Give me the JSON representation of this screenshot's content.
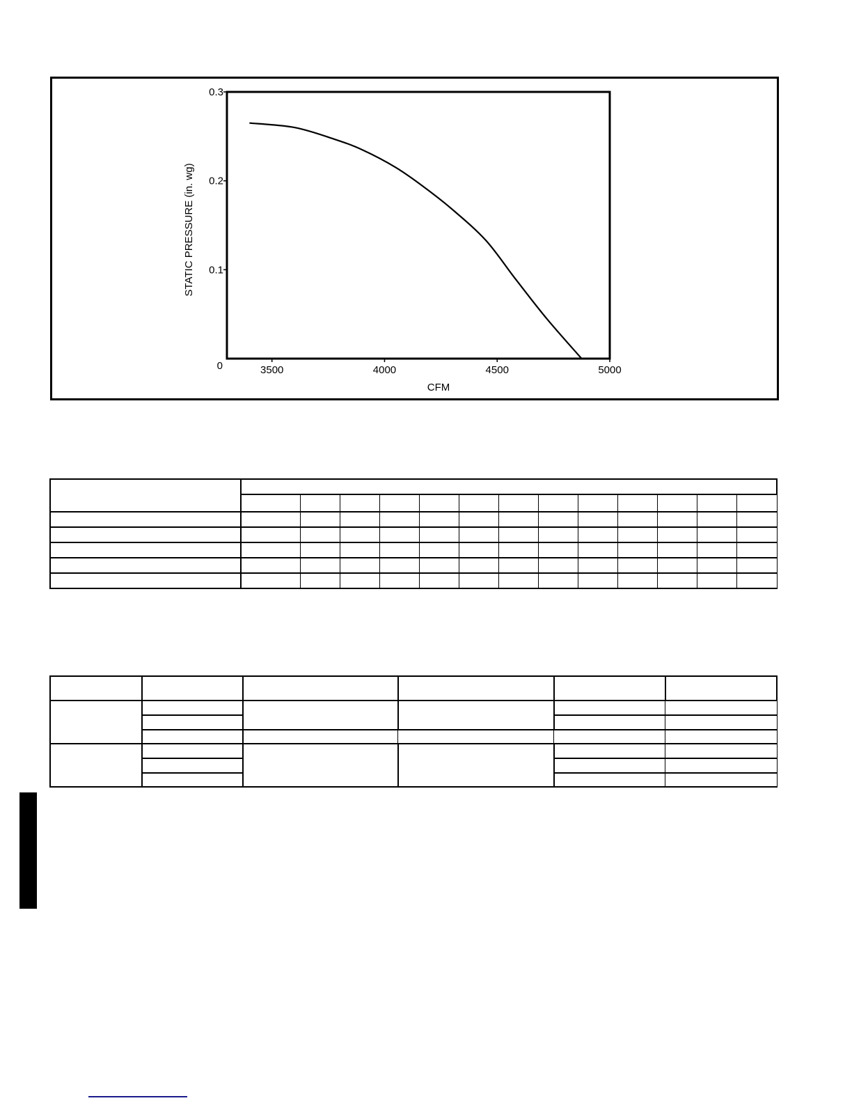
{
  "chart_data": {
    "type": "line",
    "title": "",
    "xlabel": "CFM",
    "ylabel": "STATIC PRESSURE (in. wg)",
    "xlim": [
      3300,
      5000
    ],
    "ylim": [
      0,
      0.3
    ],
    "x_ticks": [
      3500,
      4000,
      4500,
      5000
    ],
    "x_tick_labels": [
      "3500",
      "4000",
      "4500",
      "5000"
    ],
    "y_ticks": [
      0,
      0.1,
      0.2,
      0.3
    ],
    "y_tick_labels": [
      "0",
      "0.1",
      "0.2",
      "0.3"
    ],
    "grid": false,
    "series": [
      {
        "x": [
          3400,
          3600,
          3775,
          3900,
          4050,
          4175,
          4300,
          4450,
          4580,
          4720,
          4875
        ],
        "y": [
          0.265,
          0.26,
          0.247,
          0.235,
          0.215,
          0.193,
          0.168,
          0.133,
          0.09,
          0.045,
          0.0
        ],
        "color": "#000000"
      }
    ]
  },
  "colors": {
    "line": "#000000",
    "footer_rule": "#1a1a8c",
    "side_tab": "#000000"
  }
}
